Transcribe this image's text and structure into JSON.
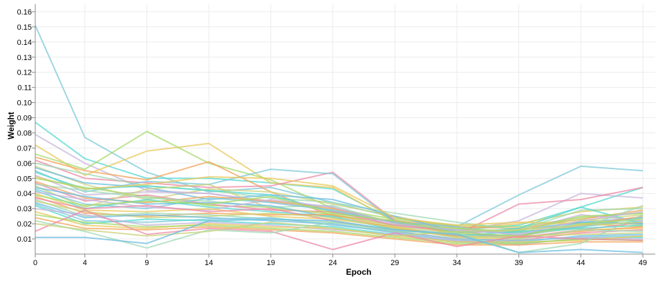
{
  "chart_data": {
    "type": "line",
    "title": "",
    "xlabel": "Epoch",
    "ylabel": "Weight",
    "x": [
      0,
      4,
      9,
      14,
      19,
      24,
      29,
      34,
      39,
      44,
      49
    ],
    "xlim": [
      0,
      50
    ],
    "ylim": [
      0,
      0.165
    ],
    "yticks": [
      "0.01",
      "0.02",
      "0.03",
      "0.04",
      "0.05",
      "0.06",
      "0.07",
      "0.08",
      "0.09",
      "0.10",
      "0.11",
      "0.12",
      "0.13",
      "0.14",
      "0.15",
      "0.16"
    ],
    "xticks": [
      "0",
      "4",
      "9",
      "14",
      "19",
      "24",
      "29",
      "34",
      "39",
      "44",
      "49"
    ],
    "grid": true,
    "legend": "none",
    "palette": [
      "#7ec8d8",
      "#55d8d0",
      "#c8b6dc",
      "#e8c85a",
      "#a6d96a",
      "#f2a45a",
      "#ec8aa6",
      "#9fd9b4",
      "#c9d17a",
      "#6bbde0"
    ],
    "series": [
      {
        "values": [
          0.151,
          0.077,
          0.054,
          0.041,
          0.044,
          0.034,
          0.024,
          0.018,
          0.039,
          0.058,
          0.055
        ]
      },
      {
        "values": [
          0.087,
          0.063,
          0.05,
          0.05,
          0.047,
          0.043,
          0.022,
          0.016,
          0.019,
          0.031,
          0.044
        ]
      },
      {
        "values": [
          0.079,
          0.06,
          0.042,
          0.04,
          0.034,
          0.029,
          0.02,
          0.015,
          0.022,
          0.04,
          0.037
        ]
      },
      {
        "values": [
          0.072,
          0.052,
          0.068,
          0.073,
          0.047,
          0.044,
          0.021,
          0.017,
          0.02,
          0.028,
          0.031
        ]
      },
      {
        "values": [
          0.066,
          0.056,
          0.081,
          0.06,
          0.049,
          0.03,
          0.023,
          0.019,
          0.018,
          0.024,
          0.027
        ]
      },
      {
        "values": [
          0.064,
          0.055,
          0.049,
          0.061,
          0.041,
          0.025,
          0.022,
          0.018,
          0.017,
          0.023,
          0.029
        ]
      },
      {
        "values": [
          0.062,
          0.05,
          0.047,
          0.044,
          0.045,
          0.054,
          0.022,
          0.013,
          0.033,
          0.036,
          0.044
        ]
      },
      {
        "values": [
          0.06,
          0.053,
          0.045,
          0.042,
          0.037,
          0.034,
          0.027,
          0.021,
          0.016,
          0.029,
          0.03
        ]
      },
      {
        "values": [
          0.058,
          0.046,
          0.036,
          0.043,
          0.041,
          0.033,
          0.025,
          0.017,
          0.014,
          0.022,
          0.026
        ]
      },
      {
        "values": [
          0.057,
          0.047,
          0.044,
          0.036,
          0.039,
          0.036,
          0.025,
          0.015,
          0.016,
          0.021,
          0.024
        ]
      },
      {
        "values": [
          0.055,
          0.041,
          0.048,
          0.046,
          0.056,
          0.053,
          0.021,
          0.018,
          0.012,
          0.018,
          0.022
        ]
      },
      {
        "values": [
          0.054,
          0.043,
          0.045,
          0.042,
          0.039,
          0.028,
          0.021,
          0.014,
          0.017,
          0.031,
          0.02
        ]
      },
      {
        "values": [
          0.052,
          0.039,
          0.041,
          0.04,
          0.035,
          0.031,
          0.018,
          0.016,
          0.015,
          0.026,
          0.022
        ]
      },
      {
        "values": [
          0.051,
          0.043,
          0.046,
          0.051,
          0.05,
          0.045,
          0.024,
          0.019,
          0.021,
          0.02,
          0.018
        ]
      },
      {
        "values": [
          0.05,
          0.044,
          0.038,
          0.032,
          0.031,
          0.026,
          0.019,
          0.017,
          0.015,
          0.025,
          0.027
        ]
      },
      {
        "values": [
          0.048,
          0.037,
          0.034,
          0.038,
          0.035,
          0.03,
          0.021,
          0.013,
          0.012,
          0.019,
          0.025
        ]
      },
      {
        "values": [
          0.047,
          0.035,
          0.039,
          0.033,
          0.029,
          0.028,
          0.019,
          0.015,
          0.011,
          0.016,
          0.021
        ]
      },
      {
        "values": [
          0.046,
          0.042,
          0.037,
          0.035,
          0.031,
          0.032,
          0.02,
          0.016,
          0.013,
          0.017,
          0.032
        ]
      },
      {
        "values": [
          0.045,
          0.031,
          0.043,
          0.046,
          0.03,
          0.027,
          0.018,
          0.014,
          0.016,
          0.023,
          0.019
        ]
      },
      {
        "values": [
          0.044,
          0.038,
          0.033,
          0.034,
          0.032,
          0.024,
          0.017,
          0.013,
          0.012,
          0.021,
          0.02
        ]
      },
      {
        "values": [
          0.043,
          0.033,
          0.03,
          0.037,
          0.034,
          0.029,
          0.021,
          0.015,
          0.014,
          0.018,
          0.024
        ]
      },
      {
        "values": [
          0.042,
          0.03,
          0.036,
          0.031,
          0.028,
          0.025,
          0.016,
          0.012,
          0.015,
          0.017,
          0.019
        ]
      },
      {
        "values": [
          0.041,
          0.036,
          0.031,
          0.029,
          0.036,
          0.031,
          0.02,
          0.016,
          0.013,
          0.022,
          0.028
        ]
      },
      {
        "values": [
          0.04,
          0.029,
          0.028,
          0.03,
          0.025,
          0.023,
          0.018,
          0.011,
          0.01,
          0.016,
          0.017
        ]
      },
      {
        "values": [
          0.039,
          0.032,
          0.035,
          0.033,
          0.038,
          0.027,
          0.022,
          0.014,
          0.012,
          0.02,
          0.023
        ]
      },
      {
        "values": [
          0.038,
          0.027,
          0.025,
          0.027,
          0.026,
          0.026,
          0.017,
          0.012,
          0.011,
          0.015,
          0.018
        ]
      },
      {
        "values": [
          0.037,
          0.03,
          0.032,
          0.028,
          0.03,
          0.022,
          0.015,
          0.01,
          0.009,
          0.014,
          0.016
        ]
      },
      {
        "values": [
          0.036,
          0.025,
          0.027,
          0.026,
          0.023,
          0.021,
          0.016,
          0.013,
          0.01,
          0.016,
          0.015
        ]
      },
      {
        "values": [
          0.035,
          0.028,
          0.024,
          0.025,
          0.027,
          0.024,
          0.017,
          0.011,
          0.012,
          0.013,
          0.014
        ]
      },
      {
        "values": [
          0.034,
          0.024,
          0.026,
          0.024,
          0.022,
          0.02,
          0.014,
          0.009,
          0.008,
          0.012,
          0.013
        ]
      },
      {
        "values": [
          0.033,
          0.022,
          0.021,
          0.023,
          0.024,
          0.019,
          0.015,
          0.01,
          0.009,
          0.011,
          0.012
        ]
      },
      {
        "values": [
          0.032,
          0.02,
          0.023,
          0.022,
          0.02,
          0.018,
          0.013,
          0.008,
          0.007,
          0.01,
          0.011
        ]
      },
      {
        "values": [
          0.03,
          0.026,
          0.019,
          0.021,
          0.019,
          0.016,
          0.013,
          0.009,
          0.006,
          0.011,
          0.01
        ]
      },
      {
        "values": [
          0.028,
          0.019,
          0.017,
          0.02,
          0.018,
          0.017,
          0.012,
          0.008,
          0.008,
          0.009,
          0.012
        ]
      },
      {
        "values": [
          0.026,
          0.021,
          0.018,
          0.019,
          0.017,
          0.015,
          0.011,
          0.007,
          0.007,
          0.01,
          0.009
        ]
      },
      {
        "values": [
          0.024,
          0.017,
          0.016,
          0.018,
          0.016,
          0.014,
          0.01,
          0.006,
          0.006,
          0.008,
          0.008
        ]
      },
      {
        "values": [
          0.015,
          0.029,
          0.013,
          0.017,
          0.015,
          0.003,
          0.014,
          0.005,
          0.012,
          0.01,
          0.009
        ]
      },
      {
        "values": [
          0.022,
          0.015,
          0.004,
          0.016,
          0.014,
          0.021,
          0.015,
          0.014,
          0.001,
          0.007,
          0.026
        ]
      },
      {
        "values": [
          0.02,
          0.016,
          0.012,
          0.015,
          0.021,
          0.017,
          0.012,
          0.015,
          0.016,
          0.019,
          0.021
        ]
      },
      {
        "values": [
          0.011,
          0.011,
          0.007,
          0.022,
          0.023,
          0.022,
          0.016,
          0.013,
          0.001,
          0.003,
          0.001
        ]
      }
    ]
  }
}
